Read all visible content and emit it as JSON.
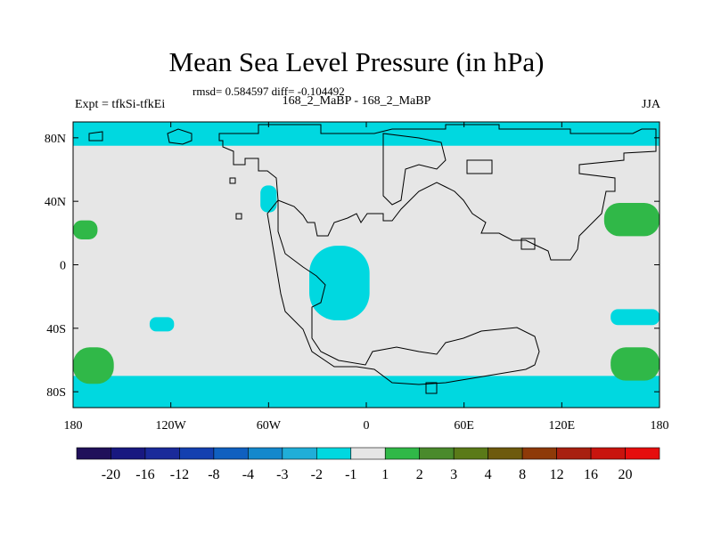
{
  "chart_data": {
    "type": "heatmap",
    "title": "Mean Sea Level Pressure (in hPa)",
    "stats_line": "rmsd= 0.584597 diff= -0.104492",
    "left_label": "Expt = tfkSi-tfkEi",
    "center_label": "168_2_MaBP - 168_2_MaBP",
    "right_label": "JJA",
    "projection": "cylindrical equidistant",
    "x": {
      "range": [
        -180,
        180
      ],
      "ticks": [
        -180,
        -120,
        -60,
        0,
        60,
        120,
        180
      ],
      "tick_labels": [
        "180",
        "120W",
        "60W",
        "0",
        "60E",
        "120E",
        "180"
      ]
    },
    "y": {
      "range": [
        -90,
        90
      ],
      "ticks": [
        80,
        40,
        0,
        -40,
        -80
      ],
      "tick_labels": [
        "80N",
        "40N",
        "0",
        "40S",
        "80S"
      ]
    },
    "background_bin": "-1 to 1",
    "colorbar": {
      "boundaries": [
        "-20",
        "-16",
        "-12",
        "-8",
        "-4",
        "-3",
        "-2",
        "-1",
        "1",
        "2",
        "3",
        "4",
        "8",
        "12",
        "16",
        "20"
      ],
      "colors": [
        "#20105a",
        "#181880",
        "#1a2a9a",
        "#1440b0",
        "#1060c0",
        "#1488cc",
        "#20aed8",
        "#00d8e0",
        "#e6e6e6",
        "#30b848",
        "#4a8a2c",
        "#5a7a18",
        "#6e5a0e",
        "#8e3a08",
        "#a82010",
        "#c8140e",
        "#e60e0e"
      ]
    },
    "regions": [
      {
        "name": "arctic-low-band",
        "value_bin": "-2 to -1",
        "color": "#00d8e0",
        "lon_range": [
          -180,
          180
        ],
        "lat_range": [
          75,
          90
        ]
      },
      {
        "name": "north-atlantic-low",
        "value_bin": "-2 to -1",
        "color": "#00d8e0",
        "lon_range": [
          -65,
          -55
        ],
        "lat_range": [
          33,
          50
        ]
      },
      {
        "name": "tethys-equatorial-low",
        "value_bin": "-2 to -1",
        "color": "#00d8e0",
        "lon_range": [
          -35,
          2
        ],
        "lat_range": [
          -35,
          12
        ]
      },
      {
        "name": "south-pacific-low",
        "value_bin": "-2 to -1",
        "color": "#00d8e0",
        "lon_range": [
          -133,
          -118
        ],
        "lat_range": [
          -42,
          -33
        ]
      },
      {
        "name": "southwest-pacific-low",
        "value_bin": "-2 to -1",
        "color": "#00d8e0",
        "lon_range": [
          150,
          180
        ],
        "lat_range": [
          -38,
          -28
        ]
      },
      {
        "name": "antarctic-low-band",
        "value_bin": "-2 to -1",
        "color": "#00d8e0",
        "lon_range": [
          -180,
          180
        ],
        "lat_range": [
          -90,
          -70
        ]
      },
      {
        "name": "north-pacific-high",
        "value_bin": "1 to 2",
        "color": "#30b848",
        "lon_range": [
          -180,
          -165
        ],
        "lat_range": [
          16,
          28
        ]
      },
      {
        "name": "northeast-pacific-high",
        "value_bin": "1 to 2",
        "color": "#30b848",
        "lon_range": [
          146,
          180
        ],
        "lat_range": [
          18,
          39
        ]
      },
      {
        "name": "south-pacific-high-west",
        "value_bin": "1 to 2",
        "color": "#30b848",
        "lon_range": [
          -180,
          -155
        ],
        "lat_range": [
          -75,
          -52
        ]
      },
      {
        "name": "south-pacific-high-east",
        "value_bin": "1 to 2",
        "color": "#30b848",
        "lon_range": [
          150,
          180
        ],
        "lat_range": [
          -73,
          -52
        ]
      }
    ]
  }
}
